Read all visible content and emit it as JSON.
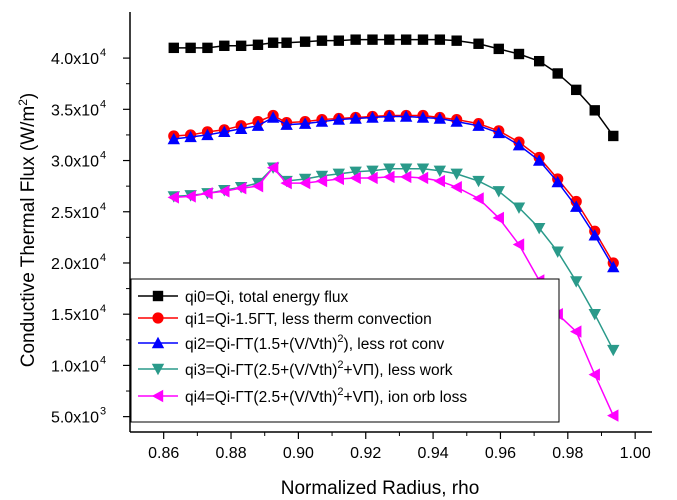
{
  "chart_data": {
    "type": "line",
    "title": "",
    "xlabel": "Normalized Radius, rho",
    "ylabel": "Conductive Thermal Flux (W/m²)",
    "xlim": [
      0.85,
      1.005
    ],
    "ylim": [
      3500,
      44500
    ],
    "x_ticks": [
      0.86,
      0.88,
      0.9,
      0.92,
      0.94,
      0.96,
      0.98,
      1.0
    ],
    "x_tick_labels": [
      "0.86",
      "0.88",
      "0.90",
      "0.92",
      "0.94",
      "0.96",
      "0.98",
      "1.00"
    ],
    "y_ticks": [
      {
        "value": 5000,
        "mantissa": "5.0x10",
        "exp": "3"
      },
      {
        "value": 10000,
        "mantissa": "1.0x10",
        "exp": "4"
      },
      {
        "value": 15000,
        "mantissa": "1.5x10",
        "exp": "4"
      },
      {
        "value": 20000,
        "mantissa": "2.0x10",
        "exp": "4"
      },
      {
        "value": 25000,
        "mantissa": "2.5x10",
        "exp": "4"
      },
      {
        "value": 30000,
        "mantissa": "3.0x10",
        "exp": "4"
      },
      {
        "value": 35000,
        "mantissa": "3.5x10",
        "exp": "4"
      },
      {
        "value": 40000,
        "mantissa": "4.0x10",
        "exp": "4"
      }
    ],
    "legend_position": "bottom-left",
    "x": [
      0.863,
      0.868,
      0.873,
      0.878,
      0.883,
      0.888,
      0.8925,
      0.8965,
      0.902,
      0.907,
      0.912,
      0.917,
      0.922,
      0.927,
      0.932,
      0.937,
      0.942,
      0.947,
      0.9535,
      0.9595,
      0.9655,
      0.9715,
      0.977,
      0.9825,
      0.988,
      0.9935
    ],
    "series": [
      {
        "name": "qi0=Qi, total energy flux",
        "color": "#000000",
        "marker": "square",
        "values": [
          41000,
          41000,
          41000,
          41200,
          41200,
          41300,
          41500,
          41500,
          41600,
          41700,
          41700,
          41800,
          41800,
          41800,
          41800,
          41800,
          41800,
          41700,
          41400,
          40900,
          40400,
          39700,
          38500,
          36900,
          34900,
          32400
        ]
      },
      {
        "name": "qi1=Qi-1.5ΓT, less therm convection",
        "color": "#ff0000",
        "marker": "circle",
        "values": [
          32400,
          32500,
          32800,
          33000,
          33400,
          33800,
          34400,
          33700,
          33800,
          34000,
          34100,
          34200,
          34300,
          34400,
          34400,
          34400,
          34200,
          34000,
          33600,
          32900,
          31800,
          30300,
          28200,
          26000,
          23100,
          20000
        ]
      },
      {
        "name": "qi2=Qi-ΓT(1.5+(V/Vth)²), less rot conv",
        "color": "#0000ff",
        "marker": "triangle-up",
        "values": [
          32100,
          32300,
          32500,
          32800,
          33100,
          33400,
          34200,
          33500,
          33600,
          33800,
          34000,
          34100,
          34200,
          34300,
          34300,
          34200,
          34100,
          33800,
          33400,
          32700,
          31500,
          30000,
          27900,
          25500,
          22700,
          19600
        ]
      },
      {
        "name": "qi3=Qi-ΓT(2.5+(V/Vth)²+VΠ), less work",
        "color": "#2a9a8a",
        "marker": "triangle-down",
        "values": [
          26500,
          26600,
          26800,
          27100,
          27400,
          27800,
          29300,
          28000,
          28200,
          28500,
          28700,
          28900,
          29000,
          29200,
          29200,
          29200,
          29000,
          28700,
          28000,
          27000,
          25400,
          23400,
          21100,
          18200,
          15000,
          11500
        ]
      },
      {
        "name": "qi4=Qi-ΓT(2.5+(V/Vth)²+VΠ), ion orb loss",
        "color": "#ff00ff",
        "marker": "triangle-left",
        "values": [
          26400,
          26500,
          26800,
          27000,
          27300,
          27500,
          29300,
          27800,
          27800,
          28000,
          28200,
          28300,
          28300,
          28400,
          28400,
          28300,
          28000,
          27400,
          26300,
          24400,
          21800,
          18300,
          15000,
          13300,
          9100,
          5100
        ]
      }
    ]
  },
  "legend": {
    "items": [
      {
        "prefix": "qi0=Qi, total energy flux"
      },
      {
        "prefix": "qi1=Qi-1.5ΓT, less therm convection"
      },
      {
        "prefix": "qi2=Qi-ΓT(1.5+(V/Vth)",
        "sup": "2",
        "suffix": "), less rot conv"
      },
      {
        "prefix": "qi3=Qi-ΓT(2.5+(V/Vth)",
        "sup": "2",
        "suffix": "+VΠ), less work"
      },
      {
        "prefix": "qi4=Qi-ΓT(2.5+(V/Vth)",
        "sup": "2",
        "suffix": "+VΠ), ion orb loss"
      }
    ]
  },
  "ylabel_parts": {
    "main": "Conductive Thermal Flux (W/m",
    "sup": "2",
    "end": ")"
  }
}
